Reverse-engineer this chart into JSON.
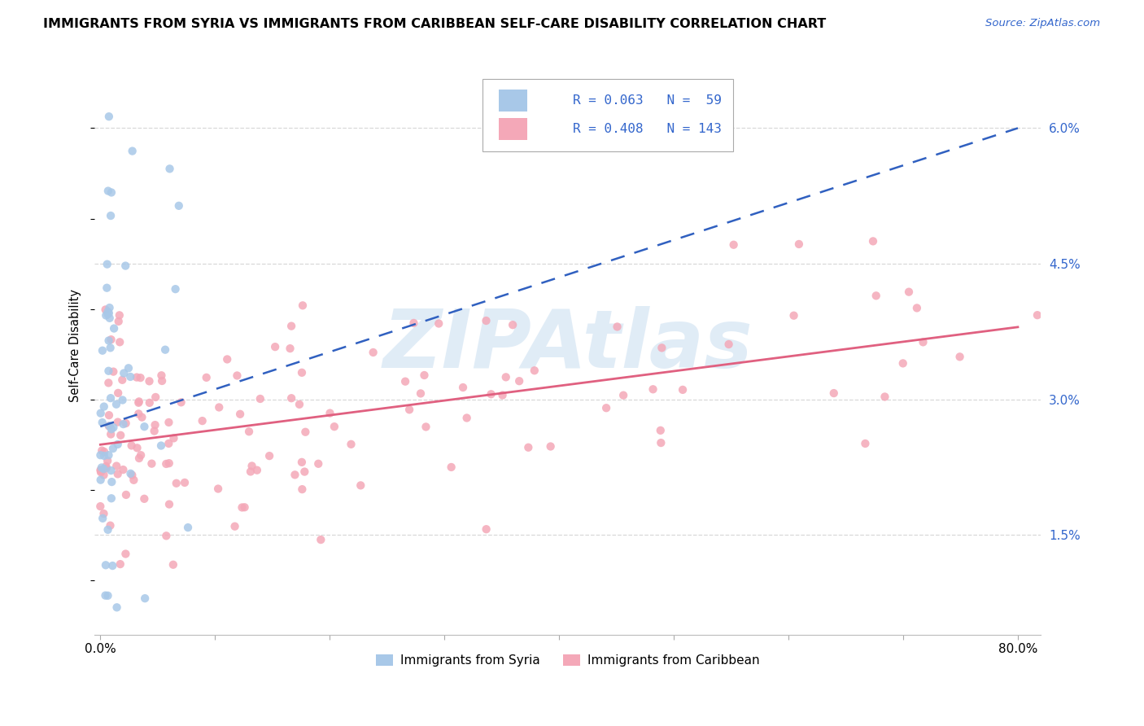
{
  "title": "IMMIGRANTS FROM SYRIA VS IMMIGRANTS FROM CARIBBEAN SELF-CARE DISABILITY CORRELATION CHART",
  "source": "Source: ZipAtlas.com",
  "ylabel": "Self-Care Disability",
  "yticks": [
    "1.5%",
    "3.0%",
    "4.5%",
    "6.0%"
  ],
  "ytick_vals": [
    0.015,
    0.03,
    0.045,
    0.06
  ],
  "ylim": [
    0.004,
    0.068
  ],
  "xlim": [
    -0.005,
    0.82
  ],
  "legend_syria_R": "0.063",
  "legend_syria_N": "59",
  "legend_caribbean_R": "0.408",
  "legend_caribbean_N": "143",
  "syria_color": "#a8c8e8",
  "caribbean_color": "#f4a8b8",
  "syria_line_color": "#3060c0",
  "caribbean_line_color": "#e06080",
  "syria_trend_x": [
    0.0,
    0.8
  ],
  "syria_trend_y": [
    0.027,
    0.06
  ],
  "caribbean_trend_x": [
    0.0,
    0.8
  ],
  "caribbean_trend_y": [
    0.025,
    0.038
  ],
  "watermark_text": "ZIPAtlas",
  "watermark_color": "#c8ddf0",
  "grid_color": "#d8d8d8",
  "bottom_legend_syria": "Immigrants from Syria",
  "bottom_legend_caribbean": "Immigrants from Caribbean"
}
